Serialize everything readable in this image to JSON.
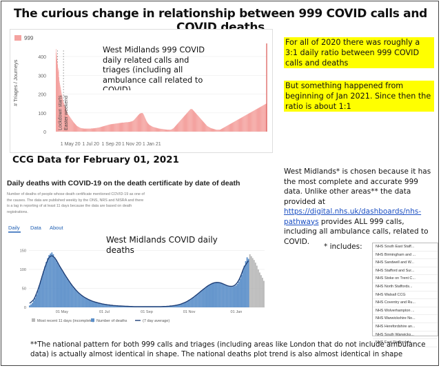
{
  "title": "The curious change in relationship between 999 COVID calls and COVID deaths",
  "highlight1": "For all of 2020 there was roughly a 3:1 daily ratio between 999 COVID calls and deaths",
  "highlight2": "But something happened from beginning of Jan 2021. Since then the ratio is about 1:1",
  "ccg_label": "CCG Data for February 01, 2021",
  "note": {
    "p1": "West Midlands* is chosen because it has the most complete and accurate 999 data. Unlike other areas** the data provided at",
    "link": "https://digital.nhs.uk/dashboards/nhs-pathways",
    "p2": "provides ALL 999 calls, including all ambulance calls, related to COVID."
  },
  "includes_label": "* includes:",
  "ccg_list": [
    "NHS South East Staff...",
    "NHS Birmingham and ...",
    "NHS Sandwell and W...",
    "NHS Stafford and Sur...",
    "NHS Stoke on Trent C...",
    "NHS North Staffords...",
    "NHS Walsall CCG",
    "NHS Coventry and Ru...",
    "NHS Wolverhampton ...",
    "NHS Warwickshire No...",
    "NHS Herefordshire an...",
    "NHS South Warwicks...",
    "NHS East Staffordshi..."
  ],
  "footer": "**The national pattern for both 999 calls and triages (including areas like London that do not include ambulance data) is actually almost identical in shape. The national deaths plot trend is also almost identical in shape",
  "colors": {
    "calls_bar": "#f4a3a0",
    "calls_edge": "#d9534f",
    "deaths_bar": "#5b8fc9",
    "deaths_line": "#1f3f77",
    "incomplete": "#b8b8b8",
    "highlight": "#ffff00"
  },
  "chart_data": [
    {
      "type": "bar",
      "legend": [
        "999"
      ],
      "annotation": "West Midlands 999 COVID daily related calls and triages (including all ambulance call related to COVID)",
      "ylabel": "# Triages / Journeys",
      "yticks": [
        0,
        100,
        200,
        300,
        400
      ],
      "ylim": [
        0,
        470
      ],
      "xticks": [
        "1 May 20",
        "1 Jul 20",
        "1 Sep 20",
        "1 Nov 20",
        "1 Jan 21"
      ],
      "event_labels": [
        "Lockdown starts",
        "Easter weekend"
      ],
      "x_start": "2020-03-18",
      "values": [
        440,
        420,
        405,
        385,
        370,
        355,
        340,
        320,
        330,
        290,
        270,
        260,
        250,
        240,
        230,
        220,
        210,
        200,
        195,
        185,
        175,
        170,
        160,
        155,
        150,
        145,
        140,
        135,
        130,
        125,
        120,
        115,
        110,
        105,
        100,
        95,
        92,
        90,
        88,
        85,
        82,
        80,
        78,
        75,
        72,
        70,
        68,
        65,
        62,
        60,
        58,
        55,
        52,
        50,
        48,
        46,
        44,
        42,
        40,
        38,
        36,
        34,
        32,
        30,
        29,
        28,
        27,
        26,
        25,
        24,
        23,
        22,
        21,
        20,
        20,
        19,
        19,
        18,
        18,
        18,
        17,
        17,
        17,
        17,
        16,
        16,
        16,
        16,
        16,
        16,
        16,
        16,
        16,
        16,
        16,
        16,
        16,
        16,
        16,
        16,
        16,
        16,
        16,
        16,
        16,
        16,
        17,
        17,
        17,
        17,
        17,
        17,
        17,
        18,
        18,
        18,
        18,
        18,
        19,
        19,
        19,
        19,
        20,
        20,
        20,
        21,
        21,
        21,
        22,
        22,
        22,
        23,
        23,
        24,
        24,
        25,
        25,
        26,
        26,
        27,
        27,
        28,
        28,
        29,
        29,
        30,
        30,
        31,
        31,
        32,
        32,
        33,
        33,
        34,
        34,
        35,
        35,
        36,
        36,
        37,
        37,
        38,
        38,
        38,
        39,
        39,
        39,
        40,
        40,
        40,
        40,
        41,
        41,
        41,
        41,
        42,
        42,
        42,
        42,
        43,
        43,
        43,
        43,
        44,
        44,
        44,
        44,
        45,
        45,
        45,
        45,
        46,
        46,
        46,
        46,
        47,
        47,
        47,
        47,
        48,
        48,
        48,
        48,
        48,
        48,
        48,
        49,
        49,
        49,
        49,
        50,
        50,
        50,
        50,
        50,
        50,
        50,
        50,
        51,
        51,
        51,
        51,
        52,
        52,
        53,
        53,
        54,
        54,
        55,
        55,
        56,
        57,
        58,
        59,
        60,
        62,
        64,
        66,
        68,
        70,
        72,
        74,
        76,
        78,
        80,
        82,
        84,
        86,
        88,
        90,
        92,
        94,
        95,
        96,
        97,
        98,
        98,
        99,
        99,
        100,
        99,
        98,
        96,
        93,
        90,
        86,
        82,
        78,
        74,
        70,
        66,
        62,
        58,
        55,
        52,
        49,
        46,
        44,
        42,
        40,
        38,
        36,
        35,
        34,
        33,
        32,
        31,
        30,
        29,
        28,
        27,
        26,
        25,
        25,
        24,
        24,
        23,
        23,
        22,
        22,
        21,
        21,
        20,
        20,
        19,
        19,
        18,
        18,
        17,
        17,
        16,
        16,
        16,
        16,
        15,
        15,
        15,
        15,
        14,
        14,
        14,
        14,
        13,
        13,
        13,
        13,
        12,
        12,
        12,
        12,
        11,
        11,
        11,
        11,
        10,
        10,
        10,
        10,
        10,
        10,
        10,
        10,
        10,
        10,
        10,
        10,
        11,
        11,
        12,
        13,
        14,
        15,
        16,
        17,
        18,
        20,
        22,
        24,
        26,
        28,
        30,
        32,
        34,
        36,
        38,
        40,
        42,
        44,
        46,
        48,
        50,
        52,
        54,
        56,
        58,
        60,
        62,
        64,
        66,
        68,
        70,
        72,
        74,
        76,
        78,
        80,
        82,
        84,
        86,
        88,
        90,
        92,
        94,
        96,
        98,
        100,
        102,
        104,
        106,
        108,
        110,
        112,
        114,
        116,
        118,
        120,
        120,
        120,
        120,
        120,
        120,
        118,
        116,
        114,
        112,
        110,
        108,
        106,
        104,
        102,
        100,
        98,
        96,
        94,
        92,
        90,
        88,
        86,
        84,
        82,
        80,
        78,
        76,
        74,
        72,
        70,
        68,
        66,
        64,
        62,
        60,
        58,
        56,
        54,
        52,
        50,
        48,
        46,
        44,
        42,
        40,
        38,
        36,
        34,
        32,
        30,
        29,
        28,
        27,
        26,
        25,
        24,
        23,
        22,
        21,
        20,
        19,
        18,
        18,
        17,
        17,
        16,
        16,
        15,
        15,
        14,
        14,
        13,
        13,
        12,
        12,
        11,
        11,
        10,
        10,
        10,
        10,
        10,
        10,
        10,
        10,
        10,
        10,
        10,
        11,
        11,
        12,
        13,
        14,
        15,
        16,
        17,
        18,
        19,
        20,
        21,
        22,
        23,
        24,
        25,
        26,
        27,
        28,
        29,
        30,
        31,
        32,
        33,
        34,
        35,
        36,
        37,
        38,
        39,
        40,
        41,
        42,
        43,
        44,
        45,
        46,
        47,
        48,
        49,
        50,
        51,
        52,
        53,
        54,
        55,
        56,
        57,
        58,
        59,
        60,
        61,
        62,
        63,
        64,
        65,
        66,
        67,
        68,
        69,
        70,
        71,
        72,
        73,
        74,
        75,
        76,
        77,
        78,
        79,
        80,
        81,
        82,
        83,
        84,
        85,
        86,
        87,
        88,
        89,
        90,
        91,
        92,
        93,
        94,
        95,
        96,
        97,
        98,
        99,
        100,
        101,
        102,
        103,
        104,
        105,
        106,
        107,
        108,
        109,
        110,
        111,
        112,
        113,
        114,
        115,
        116,
        117,
        118,
        119,
        120,
        121,
        122,
        123,
        124,
        125,
        126,
        127,
        128,
        129,
        130,
        131,
        132,
        133,
        134,
        135,
        136,
        137,
        138,
        139,
        140,
        141,
        142,
        143,
        144,
        145,
        146,
        147,
        148,
        149,
        150
      ]
    },
    {
      "type": "bar",
      "title": "Daily deaths with COVID-19 on the death certificate by date of death",
      "subtitle": "Number of deaths of people whose death certificate mentioned COVID-19 as one of the causes. The data are published weekly by the ONS, NRS and NISRA and there is a lag in reporting of at least 11 days because the data are based on death registrations.",
      "tabs": [
        "Daily",
        "Data",
        "About"
      ],
      "annotation": "West Midlands COVID daily deaths",
      "yticks": [
        0,
        50,
        100,
        150
      ],
      "ylim": [
        0,
        160
      ],
      "xticks": [
        "01 May",
        "01 Jul",
        "01 Sep",
        "01 Nov",
        "01 Jan"
      ],
      "legend": [
        "Most recent 11 days (incomplete)",
        "Number of deaths",
        "(7 day average)"
      ],
      "series": [
        {
          "name": "Number of deaths",
          "values": [
            5,
            8,
            12,
            18,
            25,
            34,
            45,
            58,
            70,
            82,
            95,
            108,
            120,
            130,
            138,
            142,
            145,
            140,
            132,
            125,
            118,
            112,
            106,
            100,
            94,
            88,
            82,
            76,
            70,
            65,
            60,
            55,
            50,
            46,
            42,
            38,
            35,
            32,
            29,
            27,
            25,
            23,
            21,
            19,
            17,
            16,
            15,
            14,
            13,
            12,
            11,
            10,
            9,
            8,
            8,
            7,
            7,
            6,
            6,
            5,
            5,
            5,
            4,
            4,
            4,
            4,
            3,
            3,
            3,
            3,
            3,
            3,
            2,
            2,
            2,
            2,
            2,
            2,
            2,
            2,
            2,
            2,
            2,
            2,
            2,
            2,
            2,
            2,
            2,
            2,
            2,
            2,
            2,
            2,
            2,
            2,
            2,
            2,
            3,
            3,
            3,
            3,
            4,
            4,
            5,
            5,
            6,
            7,
            8,
            9,
            10,
            12,
            14,
            16,
            18,
            20,
            22,
            25,
            28,
            31,
            34,
            37,
            40,
            43,
            46,
            49,
            52,
            55,
            58,
            60,
            62,
            64,
            65,
            66,
            67,
            67,
            66,
            65,
            64,
            62,
            60,
            58,
            56,
            55,
            54,
            54,
            55,
            56,
            58,
            62,
            68,
            76,
            86,
            98,
            110,
            122,
            132,
            128
          ]
        },
        {
          "name": "Most recent 11 days (incomplete)",
          "values": [
            140,
            135,
            130,
            125,
            118,
            110,
            100,
            92,
            85,
            78,
            70
          ]
        }
      ]
    }
  ]
}
